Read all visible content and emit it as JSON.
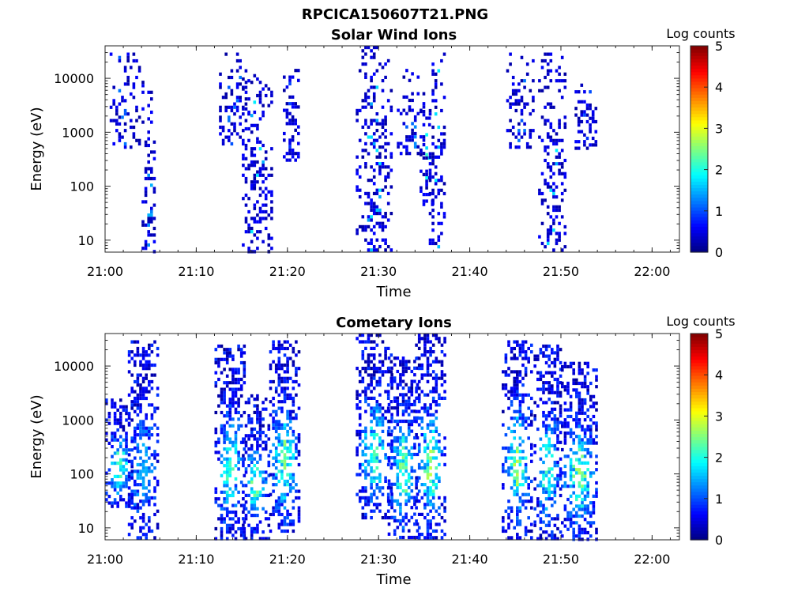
{
  "figure_title": "RPCICA150607T21.PNG",
  "chart_data": [
    {
      "type": "heatmap",
      "title": "Solar Wind Ions",
      "xlabel": "Time",
      "ylabel": "Energy (eV)",
      "xlim": [
        "21:00",
        "22:03"
      ],
      "x_ticks": [
        "21:00",
        "21:10",
        "21:20",
        "21:30",
        "21:40",
        "21:50",
        "22:00"
      ],
      "ylim": [
        6,
        40000
      ],
      "y_scale": "log",
      "y_ticks": [
        "10",
        "100",
        "1000",
        "10000"
      ],
      "colorbar": {
        "label": "Log counts",
        "range": [
          0,
          5
        ],
        "ticks": [
          "0",
          "1",
          "2",
          "3",
          "4",
          "5"
        ],
        "colormap": "jet"
      },
      "grid": false,
      "bursts": [
        {
          "t_start": "21:00.5",
          "t_end": "21:04.0",
          "e_min": 500,
          "e_max": 30000,
          "peak_log": 1.2
        },
        {
          "t_start": "21:04.0",
          "t_end": "21:05.5",
          "e_min": 6,
          "e_max": 12000,
          "peak_log": 1.5
        },
        {
          "t_start": "21:12.5",
          "t_end": "21:16.0",
          "e_min": 600,
          "e_max": 30000,
          "peak_log": 1.2
        },
        {
          "t_start": "21:15.0",
          "t_end": "21:18.5",
          "e_min": 6,
          "e_max": 12000,
          "peak_log": 1.8
        },
        {
          "t_start": "21:19.5",
          "t_end": "21:21.5",
          "e_min": 300,
          "e_max": 15000,
          "peak_log": 1.0
        },
        {
          "t_start": "21:27.5",
          "t_end": "21:31.5",
          "e_min": 6,
          "e_max": 40000,
          "peak_log": 1.8
        },
        {
          "t_start": "21:32.0",
          "t_end": "21:35.0",
          "e_min": 400,
          "e_max": 15000,
          "peak_log": 1.3
        },
        {
          "t_start": "21:34.5",
          "t_end": "21:36.0",
          "e_min": 40,
          "e_max": 3000,
          "peak_log": 2.2
        },
        {
          "t_start": "21:35.5",
          "t_end": "21:37.5",
          "e_min": 6,
          "e_max": 30000,
          "peak_log": 1.8
        },
        {
          "t_start": "21:44.0",
          "t_end": "21:47.0",
          "e_min": 500,
          "e_max": 30000,
          "peak_log": 1.2
        },
        {
          "t_start": "21:47.5",
          "t_end": "21:50.5",
          "e_min": 6,
          "e_max": 30000,
          "peak_log": 1.8
        },
        {
          "t_start": "21:51.5",
          "t_end": "21:54.0",
          "e_min": 500,
          "e_max": 8000,
          "peak_log": 1.0
        }
      ]
    },
    {
      "type": "heatmap",
      "title": "Cometary Ions",
      "xlabel": "Time",
      "ylabel": "Energy (eV)",
      "xlim": [
        "21:00",
        "22:03"
      ],
      "x_ticks": [
        "21:00",
        "21:10",
        "21:20",
        "21:30",
        "21:40",
        "21:50",
        "22:00"
      ],
      "ylim": [
        6,
        40000
      ],
      "y_scale": "log",
      "y_ticks": [
        "10",
        "100",
        "1000",
        "10000"
      ],
      "colorbar": {
        "label": "Log counts",
        "range": [
          0,
          5
        ],
        "ticks": [
          "0",
          "1",
          "2",
          "3",
          "4",
          "5"
        ],
        "colormap": "jet"
      },
      "grid": false,
      "bursts": [
        {
          "t_start": "21:00.0",
          "t_end": "21:03.0",
          "e_min": 25,
          "e_max": 2500,
          "peak_log": 2.6
        },
        {
          "t_start": "21:02.5",
          "t_end": "21:06.0",
          "e_min": 6,
          "e_max": 30000,
          "peak_log": 1.5
        },
        {
          "t_start": "21:12.0",
          "t_end": "21:15.5",
          "e_min": 6,
          "e_max": 25000,
          "peak_log": 2.3
        },
        {
          "t_start": "21:15.0",
          "t_end": "21:18.0",
          "e_min": 6,
          "e_max": 3000,
          "peak_log": 2.5
        },
        {
          "t_start": "21:18.0",
          "t_end": "21:21.5",
          "e_min": 8,
          "e_max": 30000,
          "peak_log": 2.6
        },
        {
          "t_start": "21:27.5",
          "t_end": "21:31.5",
          "e_min": 15,
          "e_max": 40000,
          "peak_log": 2.3
        },
        {
          "t_start": "21:31.0",
          "t_end": "21:34.5",
          "e_min": 6,
          "e_max": 15000,
          "peak_log": 2.6
        },
        {
          "t_start": "21:34.0",
          "t_end": "21:37.5",
          "e_min": 6,
          "e_max": 40000,
          "peak_log": 2.8
        },
        {
          "t_start": "21:43.5",
          "t_end": "21:47.0",
          "e_min": 6,
          "e_max": 30000,
          "peak_log": 2.8
        },
        {
          "t_start": "21:47.0",
          "t_end": "21:50.0",
          "e_min": 6,
          "e_max": 25000,
          "peak_log": 2.3
        },
        {
          "t_start": "21:50.0",
          "t_end": "21:54.0",
          "e_min": 6,
          "e_max": 12000,
          "peak_log": 2.7
        }
      ]
    }
  ]
}
